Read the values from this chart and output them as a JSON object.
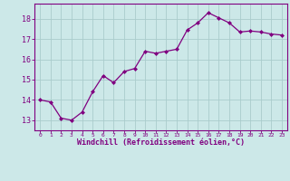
{
  "x": [
    0,
    1,
    2,
    3,
    4,
    5,
    6,
    7,
    8,
    9,
    10,
    11,
    12,
    13,
    14,
    15,
    16,
    17,
    18,
    19,
    20,
    21,
    22,
    23
  ],
  "y": [
    14.0,
    13.9,
    13.1,
    13.0,
    13.4,
    14.4,
    15.2,
    14.85,
    15.4,
    15.55,
    16.4,
    16.3,
    16.4,
    16.5,
    17.45,
    17.8,
    18.3,
    18.05,
    17.8,
    17.35,
    17.4,
    17.35,
    17.25,
    17.2
  ],
  "line_color": "#800080",
  "marker": "D",
  "marker_size": 2,
  "bg_color": "#cce8e8",
  "grid_color": "#aacccc",
  "xlabel": "Windchill (Refroidissement éolien,°C)",
  "xlabel_color": "#800080",
  "tick_color": "#800080",
  "ylim": [
    12.5,
    18.75
  ],
  "xlim": [
    -0.5,
    23.5
  ],
  "yticks": [
    13,
    14,
    15,
    16,
    17,
    18
  ],
  "xticks": [
    0,
    1,
    2,
    3,
    4,
    5,
    6,
    7,
    8,
    9,
    10,
    11,
    12,
    13,
    14,
    15,
    16,
    17,
    18,
    19,
    20,
    21,
    22,
    23
  ],
  "xtick_labels": [
    "0",
    "1",
    "2",
    "3",
    "4",
    "5",
    "6",
    "7",
    "8",
    "9",
    "10",
    "11",
    "12",
    "13",
    "14",
    "15",
    "16",
    "17",
    "18",
    "19",
    "20",
    "21",
    "22",
    "23"
  ],
  "spine_color": "#800080"
}
